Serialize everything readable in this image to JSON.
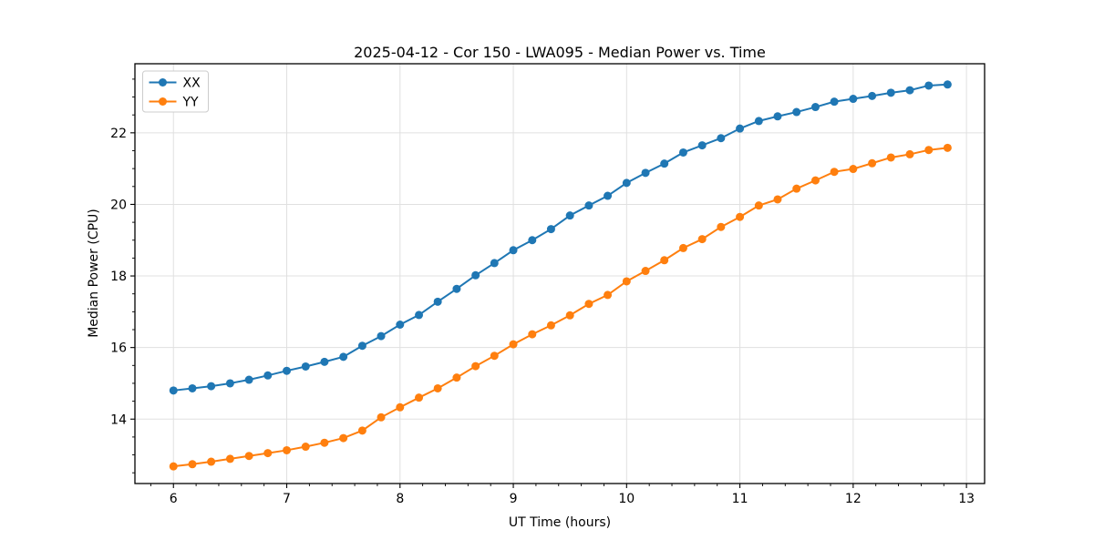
{
  "chart_data": {
    "type": "line",
    "title": "2025-04-12 - Cor 150 - LWA095 - Median Power vs. Time",
    "xlabel": "UT Time (hours)",
    "ylabel": "Median Power (CPU)",
    "xlim": [
      5.66,
      13.16
    ],
    "ylim": [
      12.2,
      23.93
    ],
    "x_ticks": [
      6,
      7,
      8,
      9,
      10,
      11,
      12,
      13
    ],
    "y_ticks": [
      14,
      16,
      18,
      20,
      22
    ],
    "x_minor_step": 0.2,
    "y_minor_step": 0.5,
    "grid": true,
    "legend_position": "upper-left",
    "background": "#ffffff",
    "grid_color": "#e0e0e0",
    "spine_color": "#000000",
    "x": [
      6.0,
      6.167,
      6.333,
      6.5,
      6.667,
      6.833,
      7.0,
      7.167,
      7.333,
      7.5,
      7.667,
      7.833,
      8.0,
      8.167,
      8.333,
      8.5,
      8.667,
      8.833,
      9.0,
      9.167,
      9.333,
      9.5,
      9.667,
      9.833,
      10.0,
      10.167,
      10.333,
      10.5,
      10.667,
      10.833,
      11.0,
      11.167,
      11.333,
      11.5,
      11.667,
      11.833,
      12.0,
      12.167,
      12.333,
      12.5,
      12.667,
      12.833
    ],
    "series": [
      {
        "name": "XX",
        "color": "#1f77b4",
        "values": [
          14.8,
          14.86,
          14.92,
          15.0,
          15.1,
          15.22,
          15.35,
          15.47,
          15.6,
          15.74,
          16.05,
          16.32,
          16.64,
          16.91,
          17.28,
          17.64,
          18.02,
          18.36,
          18.72,
          19.0,
          19.31,
          19.69,
          19.97,
          20.24,
          20.6,
          20.88,
          21.14,
          21.45,
          21.65,
          21.85,
          22.12,
          22.33,
          22.46,
          22.58,
          22.72,
          22.87,
          22.95,
          23.03,
          23.12,
          23.19,
          23.32,
          23.35
        ]
      },
      {
        "name": "YY",
        "color": "#ff7f0e",
        "values": [
          12.68,
          12.74,
          12.81,
          12.89,
          12.97,
          13.05,
          13.13,
          13.23,
          13.34,
          13.47,
          13.68,
          14.05,
          14.33,
          14.6,
          14.86,
          15.16,
          15.48,
          15.77,
          16.09,
          16.37,
          16.62,
          16.9,
          17.22,
          17.47,
          17.85,
          18.14,
          18.44,
          18.78,
          19.03,
          19.37,
          19.65,
          19.97,
          20.14,
          20.44,
          20.67,
          20.91,
          20.99,
          21.15,
          21.31,
          21.4,
          21.52,
          21.58
        ]
      }
    ]
  }
}
